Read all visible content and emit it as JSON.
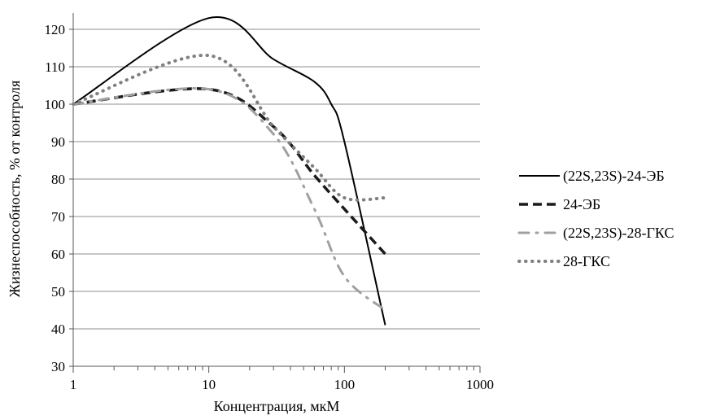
{
  "chart_data": {
    "type": "line",
    "title": "",
    "xlabel": "Концентрация, мкМ",
    "ylabel": "Жизнеспособность, % от контроля",
    "xscale": "log",
    "xlim": [
      1,
      1000
    ],
    "ylim": [
      30,
      120
    ],
    "xticks": [
      {
        "value": 1,
        "label": "1"
      },
      {
        "value": 10,
        "label": "10"
      },
      {
        "value": 100,
        "label": "100"
      },
      {
        "value": 1000,
        "label": "1000"
      }
    ],
    "yticks": [
      {
        "value": 30,
        "label": "30"
      },
      {
        "value": 40,
        "label": "40"
      },
      {
        "value": 50,
        "label": "50"
      },
      {
        "value": 60,
        "label": "60"
      },
      {
        "value": 70,
        "label": "70"
      },
      {
        "value": 80,
        "label": "80"
      },
      {
        "value": 90,
        "label": "90"
      },
      {
        "value": 100,
        "label": "100"
      },
      {
        "value": 110,
        "label": "110"
      },
      {
        "value": 120,
        "label": "120"
      }
    ],
    "grid": "horizontal",
    "legend_position": "right",
    "series": [
      {
        "name": "(22S,23S)-24-ЭБ",
        "style": "solid",
        "color": "#000000",
        "x": [
          1,
          10,
          30,
          60,
          80,
          100,
          200
        ],
        "y": [
          100,
          123,
          112,
          106,
          100,
          90,
          41
        ]
      },
      {
        "name": "24-ЭБ",
        "style": "dashed",
        "color": "#1a1a1a",
        "x": [
          1,
          10,
          30,
          60,
          100,
          200
        ],
        "y": [
          100,
          104,
          94,
          81,
          72,
          60
        ]
      },
      {
        "name": "(22S,23S)-28-ГКС",
        "style": "dashdot",
        "color": "#a0a0a0",
        "x": [
          1,
          10,
          30,
          60,
          100,
          200
        ],
        "y": [
          100,
          104,
          92,
          72,
          54,
          45
        ]
      },
      {
        "name": "28-ГКС",
        "style": "dotted",
        "color": "#808080",
        "x": [
          1,
          10,
          30,
          60,
          100,
          200
        ],
        "y": [
          100,
          113,
          94,
          83,
          75,
          75
        ]
      }
    ]
  }
}
